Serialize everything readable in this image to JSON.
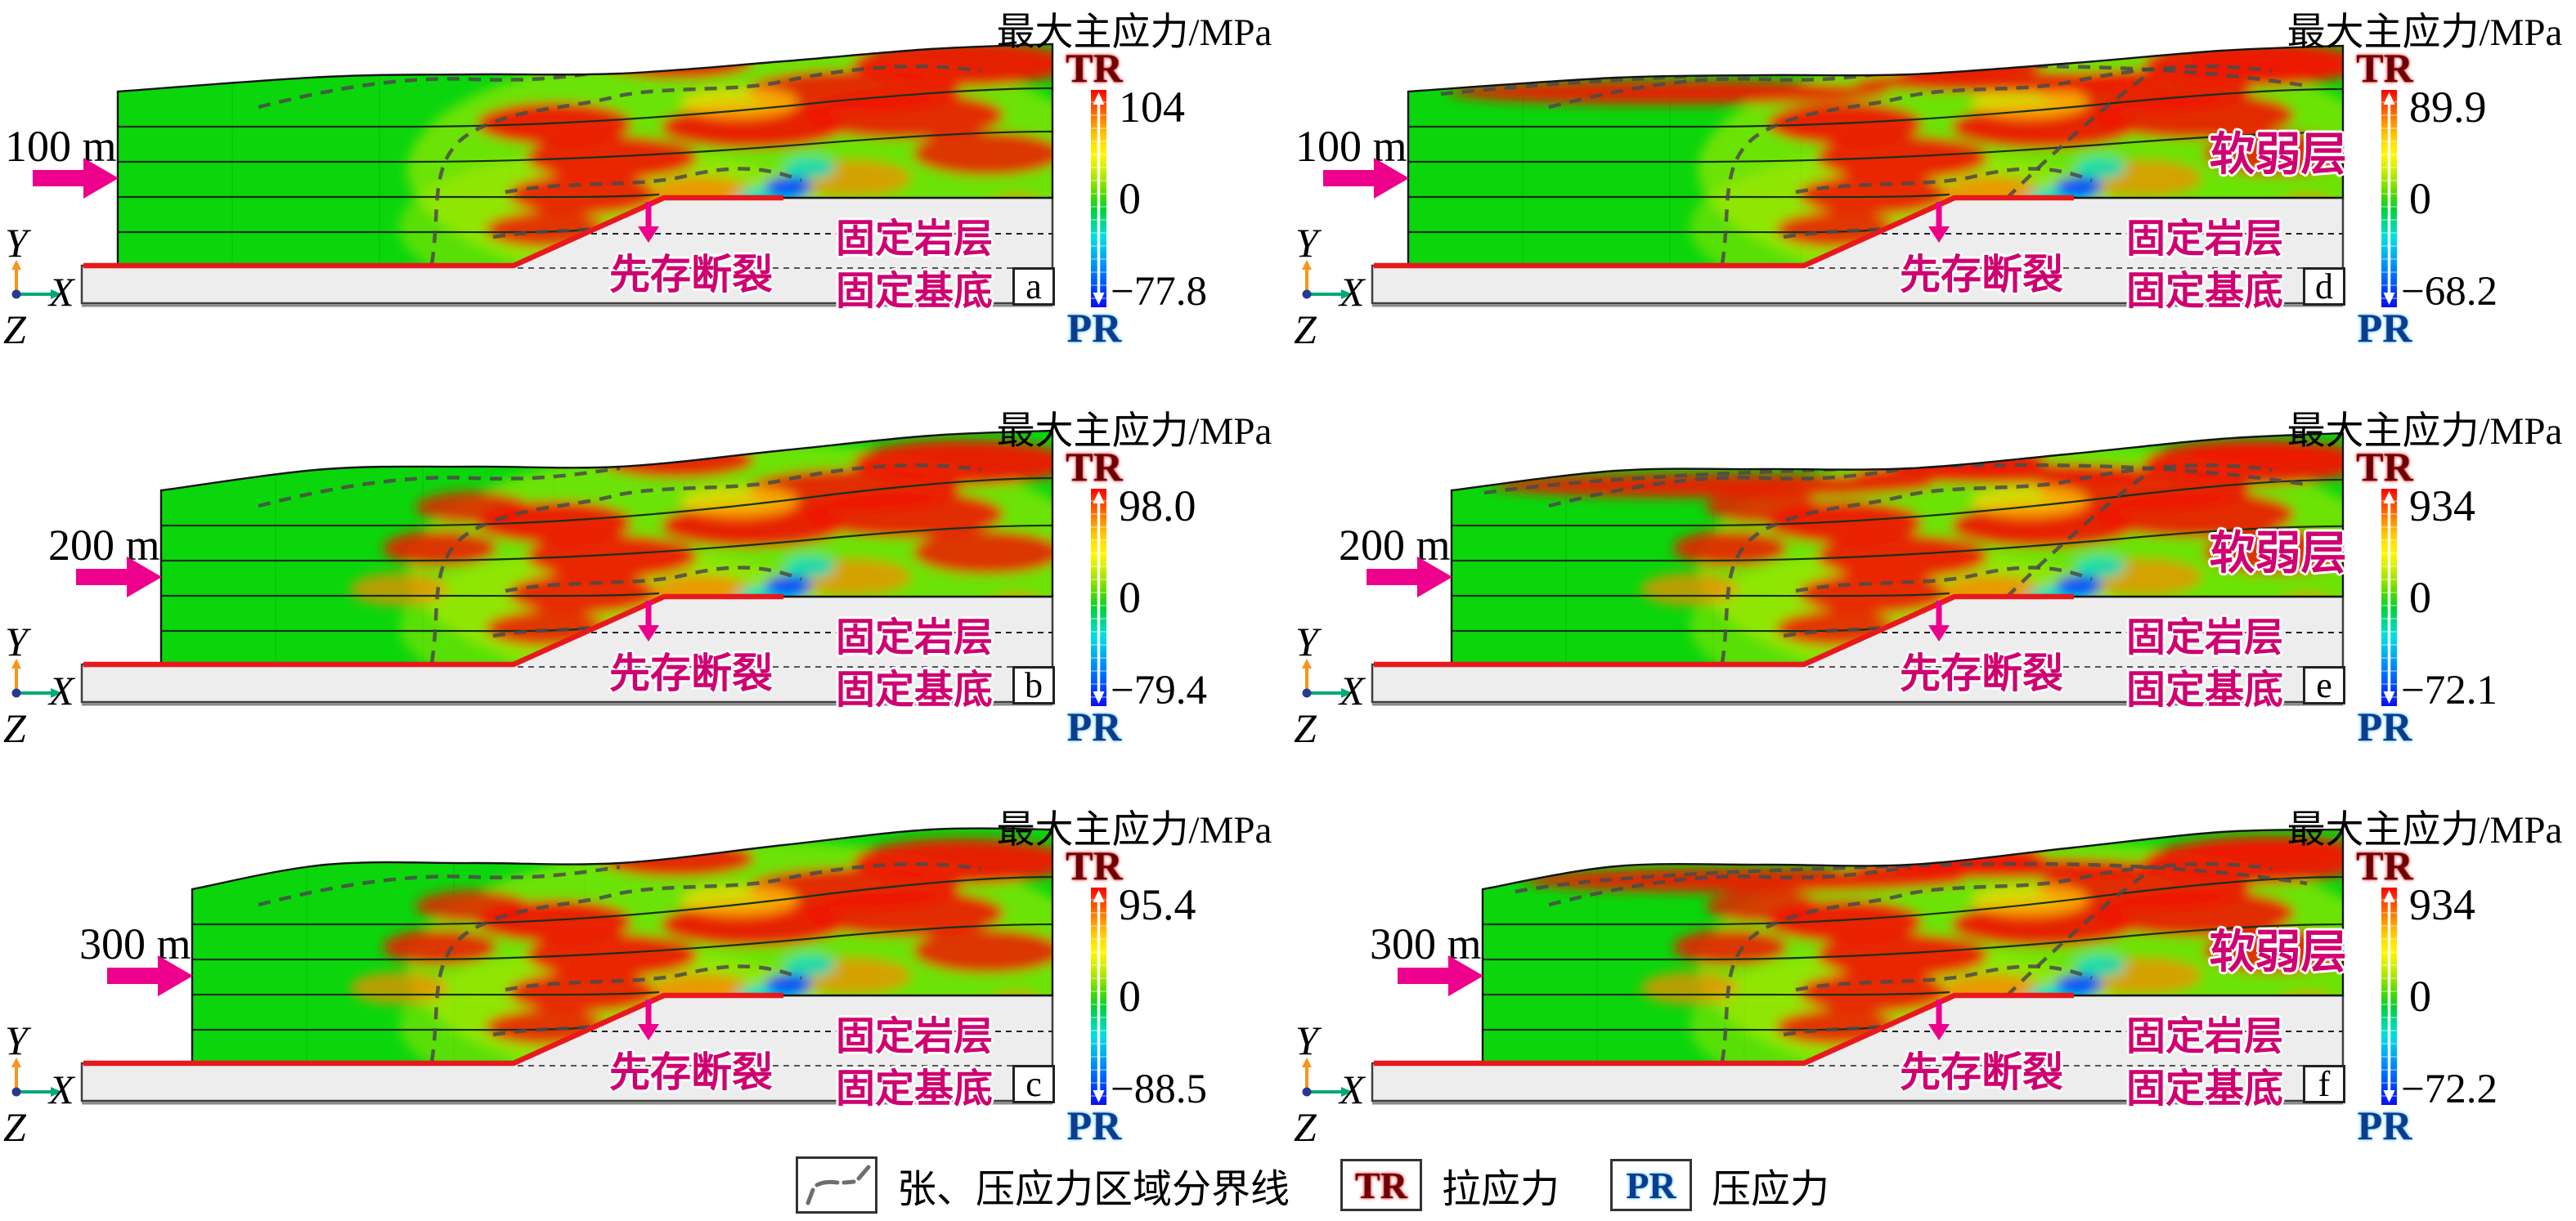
{
  "figure": {
    "colorbar_title": "最大主应力/MPa",
    "tr_label": "TR",
    "pr_label": "PR",
    "fault_label": "先存断裂",
    "fixed_rock_label": "固定岩层",
    "fixed_basement_label": "固定基底",
    "weak_layer_label": "软弱层",
    "axis": {
      "x": "X",
      "y": "Y",
      "z": "Z"
    },
    "colors": {
      "push_arrow_magenta": "#EC008C",
      "annotation_magenta": "#CF0070",
      "tr_dark_red": "#6D0005",
      "pr_blue": "#0A3D8F",
      "fault_line_red": "#E8191C",
      "model_green": "#0BD60B",
      "basement_gray": "#EDEDED"
    }
  },
  "panels": [
    {
      "letter": "a",
      "row": 0,
      "col": 0,
      "displacement": "100 m",
      "tr_max": "104",
      "zero": "0",
      "pr_min": "−77.8",
      "weak_layer": null,
      "amplitude": 0.5
    },
    {
      "letter": "d",
      "row": 0,
      "col": 1,
      "displacement": "100 m",
      "tr_max": "89.9",
      "zero": "0",
      "pr_min": "−68.2",
      "weak_layer": "软弱层",
      "amplitude": 0.45
    },
    {
      "letter": "b",
      "row": 1,
      "col": 0,
      "displacement": "200 m",
      "tr_max": "98.0",
      "zero": "0",
      "pr_min": "−79.4",
      "weak_layer": null,
      "amplitude": 0.85
    },
    {
      "letter": "e",
      "row": 1,
      "col": 1,
      "displacement": "200 m",
      "tr_max": "934",
      "zero": "0",
      "pr_min": "−72.1",
      "weak_layer": "软弱层",
      "amplitude": 0.75
    },
    {
      "letter": "c",
      "row": 2,
      "col": 0,
      "displacement": "300 m",
      "tr_max": "95.4",
      "zero": "0",
      "pr_min": "−88.5",
      "weak_layer": null,
      "amplitude": 1.0
    },
    {
      "letter": "f",
      "row": 2,
      "col": 1,
      "displacement": "300 m",
      "tr_max": "934",
      "zero": "0",
      "pr_min": "−72.2",
      "weak_layer": "软弱层",
      "amplitude": 0.9
    }
  ],
  "legend": {
    "boundary_text": "张、压应力区域分界线",
    "tr_label": "TR",
    "tr_text": "拉应力",
    "pr_label": "PR",
    "pr_text": "压应力"
  }
}
